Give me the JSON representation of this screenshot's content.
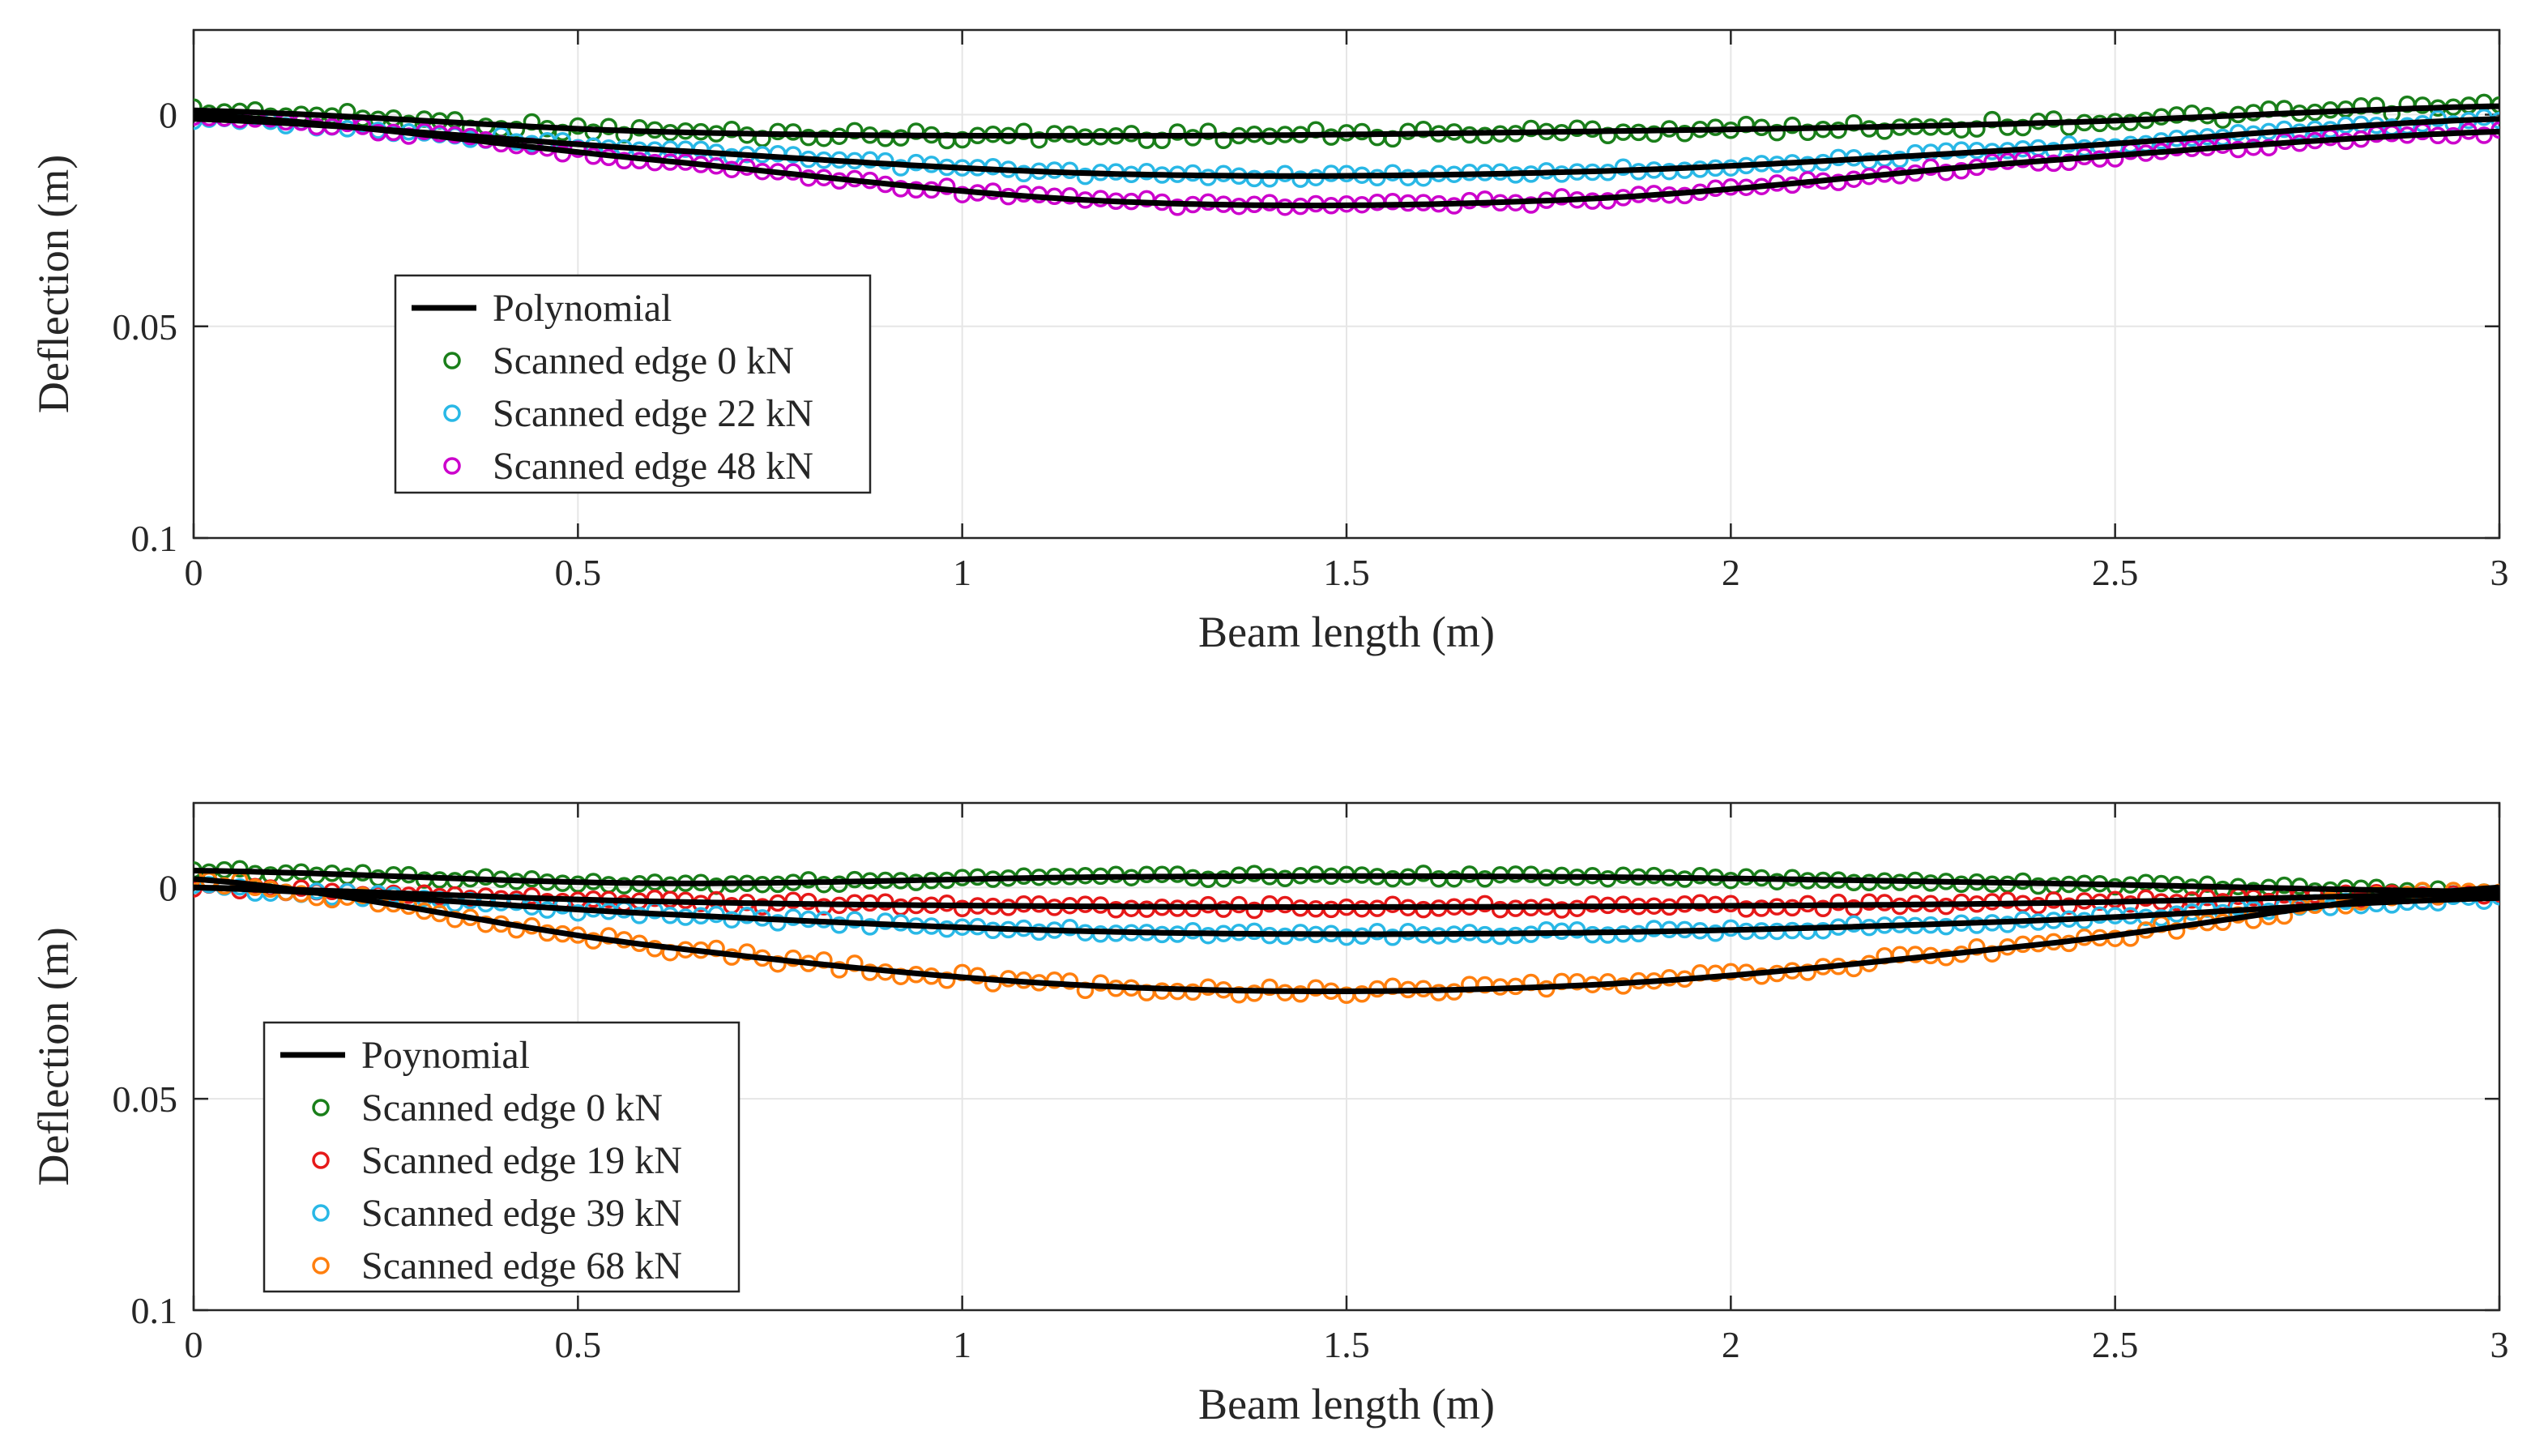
{
  "chart_data": [
    {
      "type": "scatter",
      "title": "",
      "xlabel": "Beam length (m)",
      "ylabel": "Deflection (m)",
      "xlim": [
        0,
        3
      ],
      "ylim": [
        -0.02,
        0.1
      ],
      "y_reversed": true,
      "grid": true,
      "x_ticks": [
        0,
        0.5,
        1,
        1.5,
        2,
        2.5,
        3
      ],
      "x_tick_labels": [
        "0",
        "0.5",
        "1",
        "1.5",
        "2",
        "2.5",
        "3"
      ],
      "y_ticks": [
        0,
        0.05,
        0.1
      ],
      "y_tick_labels": [
        "0",
        "0.05",
        "0.1"
      ],
      "legend_position": "left-middle",
      "fit_label": "Polynomial",
      "fit_color": "#000000",
      "series": [
        {
          "name": "Scanned edge 0 kN",
          "color": "#1a7f1a",
          "fit": [
            -0.001,
            0.004,
            0.005,
            0.004,
            0.002,
            -0.002
          ],
          "spread": 0.0012
        },
        {
          "name": "Scanned edge 22 kN",
          "color": "#29b8e6",
          "fit": [
            0.001,
            0.0082,
            0.014,
            0.0135,
            0.008,
            0.001
          ],
          "spread": 0.0008
        },
        {
          "name": "Scanned edge 48 kN",
          "color": "#cc00cc",
          "fit": [
            0.0,
            0.0107,
            0.0205,
            0.02,
            0.011,
            0.004
          ],
          "spread": 0.0009
        }
      ]
    },
    {
      "type": "scatter",
      "title": "",
      "xlabel": "Beam length (m)",
      "ylabel": "Deflection (m)",
      "xlim": [
        0,
        3
      ],
      "ylim": [
        -0.02,
        0.1
      ],
      "y_reversed": true,
      "grid": true,
      "x_ticks": [
        0,
        0.5,
        1,
        1.5,
        2,
        2.5,
        3
      ],
      "x_tick_labels": [
        "0",
        "0.5",
        "1",
        "1.5",
        "2",
        "2.5",
        "3"
      ],
      "y_ticks": [
        0,
        0.05,
        0.1
      ],
      "y_tick_labels": [
        "0",
        "0.05",
        "0.1"
      ],
      "legend_position": "bottom-left",
      "fit_label": "Poynomial",
      "fit_color": "#000000",
      "series": [
        {
          "name": "Scanned edge 0 kN",
          "color": "#1a7f1a",
          "fit": [
            -0.004,
            -0.001,
            -0.0025,
            -0.0025,
            -0.001,
            0.001
          ],
          "spread": 0.0007
        },
        {
          "name": "Scanned edge 19 kN",
          "color": "#e61919",
          "fit": [
            0.0,
            0.0033,
            0.0045,
            0.0045,
            0.0037,
            0.0015
          ],
          "spread": 0.0008
        },
        {
          "name": "Scanned edge 39 kN",
          "color": "#29b8e6",
          "fit": [
            0.0,
            0.0062,
            0.0105,
            0.0107,
            0.0078,
            0.0025
          ],
          "spread": 0.0008
        },
        {
          "name": "Scanned edge 68 kN",
          "color": "#ff7f0e",
          "fit": [
            -0.002,
            0.0138,
            0.0235,
            0.0232,
            0.0135,
            0.0
          ],
          "spread": 0.0012
        }
      ]
    }
  ]
}
